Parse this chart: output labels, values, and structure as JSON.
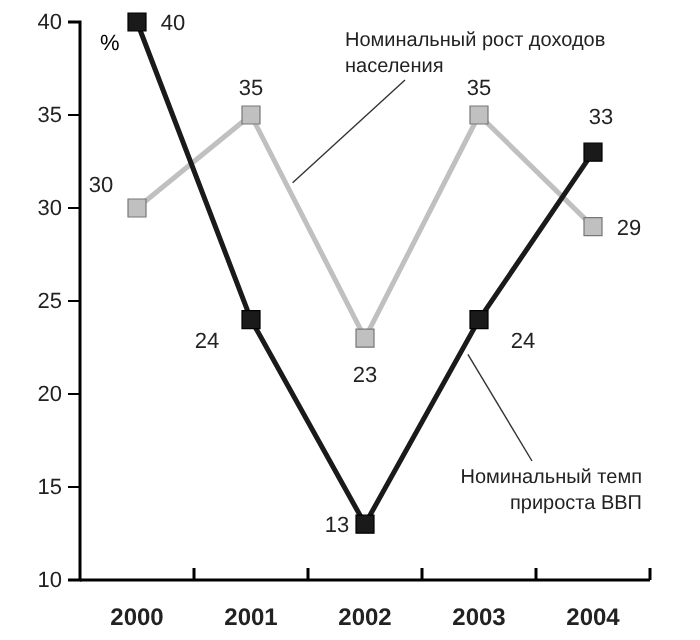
{
  "chart_data": {
    "type": "line",
    "ylabel": "%",
    "categories": [
      "2000",
      "2001",
      "2002",
      "2003",
      "2004"
    ],
    "series": [
      {
        "name": "Номинальный темп прироста ВВП",
        "color": "#1a1a1a",
        "values": [
          40,
          24,
          13,
          24,
          33
        ]
      },
      {
        "name": "Номинальный рост доходов населения",
        "color": "#c0c0c0",
        "values": [
          30,
          35,
          23,
          35,
          29
        ]
      }
    ],
    "ylim": [
      10,
      40
    ],
    "yticks": [
      10,
      15,
      20,
      25,
      30,
      35,
      40
    ],
    "marker": "square",
    "line_style": "solid",
    "data_labels": true,
    "grid": false
  }
}
